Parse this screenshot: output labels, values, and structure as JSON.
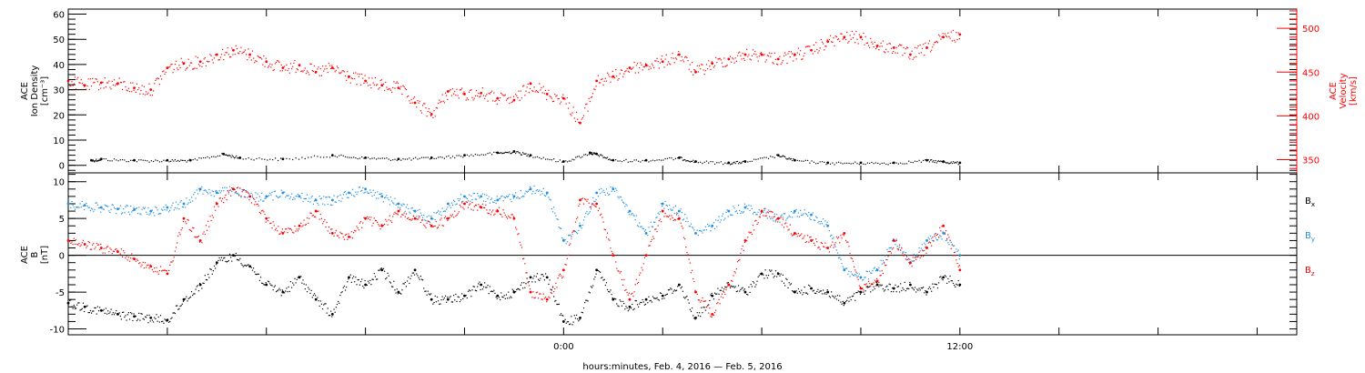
{
  "colors": {
    "black": "#000000",
    "red": "#ff0000",
    "blue": "#1f8fe6"
  },
  "chart_data": [
    {
      "type": "scatter",
      "panel": "top",
      "ylabel_left": [
        "ACE",
        "Ion Density",
        "[cm⁻³]"
      ],
      "ylabel_right": [
        "ACE",
        "Velocity",
        "[km/s]"
      ],
      "left_axis": {
        "ylim": [
          -3,
          62
        ],
        "ticks": [
          0,
          10,
          20,
          30,
          40,
          50,
          60
        ],
        "tick_labels": [
          "0",
          "10",
          "20",
          "30",
          "40",
          "50",
          "60"
        ]
      },
      "right_axis": {
        "ylim": [
          335,
          522
        ],
        "ticks": [
          350,
          400,
          450,
          500
        ],
        "tick_labels": [
          "350",
          "400",
          "450",
          "500"
        ]
      },
      "x_hours_range": [
        -15,
        22.2
      ],
      "series": [
        {
          "color": "black",
          "axis": "left",
          "x_hours": [
            -14.3,
            -14,
            -13,
            -12,
            -11.3,
            -10.3,
            -9.8,
            -8.5,
            -7,
            -6,
            -5,
            -4,
            -3,
            -2,
            -1.5,
            -1,
            0,
            0.8,
            1,
            1.5,
            2.5,
            3.5,
            4,
            5,
            5.5,
            6.5,
            7,
            8,
            9,
            10,
            11,
            11.5,
            12
          ],
          "y": [
            2,
            2.5,
            2,
            2,
            2,
            4.5,
            3,
            2.5,
            4,
            3,
            2.5,
            3,
            4,
            5,
            5.5,
            4,
            1.5,
            5,
            4.5,
            2,
            2,
            3,
            1.5,
            1,
            1.5,
            4,
            2,
            1,
            1,
            1,
            2,
            1.5,
            1
          ]
        },
        {
          "color": "red",
          "axis": "right",
          "x_hours": [
            -15,
            -14.5,
            -14,
            -13.5,
            -13,
            -12.5,
            -12,
            -11.5,
            -11,
            -10.5,
            -10,
            -9.5,
            -9,
            -8.5,
            -8,
            -7.5,
            -7,
            -6.5,
            -6,
            -5.5,
            -5,
            -4.5,
            -4,
            -3.5,
            -3,
            -2.5,
            -2,
            -1.5,
            -1,
            -0.5,
            0,
            0.5,
            1,
            1.5,
            2,
            2.5,
            3,
            3.5,
            4,
            4.5,
            5,
            5.5,
            6,
            6.5,
            7,
            7.5,
            8,
            8.5,
            9,
            9.5,
            10,
            10.5,
            11,
            11.5,
            12
          ],
          "y": [
            440,
            435,
            438,
            437,
            432,
            430,
            455,
            460,
            462,
            470,
            475,
            470,
            462,
            455,
            458,
            450,
            455,
            445,
            440,
            435,
            432,
            415,
            402,
            428,
            425,
            426,
            420,
            418,
            437,
            425,
            420,
            392,
            440,
            445,
            455,
            458,
            462,
            470,
            450,
            460,
            465,
            470,
            470,
            465,
            470,
            475,
            485,
            490,
            490,
            480,
            478,
            470,
            478,
            490,
            493
          ]
        }
      ]
    },
    {
      "type": "scatter",
      "panel": "bottom",
      "ylabel_left": [
        "ACE",
        "B",
        "[nT]"
      ],
      "left_axis": {
        "ylim": [
          -10.8,
          11.2
        ],
        "ticks": [
          -10,
          -5,
          0,
          5,
          10
        ],
        "tick_labels": [
          "-10",
          "-5",
          "0",
          "5",
          "10"
        ]
      },
      "zero_line": true,
      "x_hours_range": [
        -15,
        22.2
      ],
      "legend_position": "right",
      "series": [
        {
          "name": "B",
          "sub": "x",
          "color": "black",
          "x_hours": [
            -15,
            -14.5,
            -14,
            -13.5,
            -13,
            -12.5,
            -12,
            -11.5,
            -11,
            -10.5,
            -10,
            -9.5,
            -9,
            -8.5,
            -8,
            -7.5,
            -7,
            -6.5,
            -6,
            -5.5,
            -5,
            -4.5,
            -4,
            -3.5,
            -3,
            -2.5,
            -2,
            -1.5,
            -1,
            -0.5,
            0,
            0.5,
            1,
            1.5,
            2,
            2.5,
            3,
            3.5,
            4,
            4.5,
            5,
            5.5,
            6,
            6.5,
            7,
            7.5,
            8,
            8.5,
            9,
            9.5,
            10,
            10.5,
            11,
            11.5,
            12
          ],
          "y": [
            -6.5,
            -7,
            -7.5,
            -8,
            -8.3,
            -8.5,
            -8.8,
            -6,
            -4,
            -1,
            0,
            -1.5,
            -4,
            -5,
            -3,
            -6,
            -8,
            -3,
            -4,
            -2,
            -5,
            -2,
            -6,
            -6,
            -5.5,
            -4,
            -5.5,
            -5,
            -3,
            -3,
            -9,
            -8.5,
            -2,
            -6,
            -7,
            -6,
            -5.5,
            -4,
            -8.5,
            -5.5,
            -4,
            -5,
            -2.5,
            -2.5,
            -5,
            -4.5,
            -5,
            -6.5,
            -5,
            -4,
            -4.5,
            -4,
            -5,
            -3,
            -4
          ]
        },
        {
          "name": "B",
          "sub": "y",
          "color": "blue",
          "x_hours": [
            -15,
            -14.5,
            -14,
            -13.5,
            -13,
            -12.5,
            -12,
            -11.5,
            -11,
            -10.5,
            -10,
            -9.5,
            -9,
            -8.5,
            -8,
            -7.5,
            -7,
            -6.5,
            -6,
            -5.5,
            -5,
            -4.5,
            -4,
            -3.5,
            -3,
            -2.5,
            -2,
            -1.5,
            -1,
            -0.5,
            0,
            0.5,
            1,
            1.5,
            2,
            2.5,
            3,
            3.5,
            4,
            4.5,
            5,
            5.5,
            6,
            6.5,
            7,
            7.5,
            8,
            8.5,
            9,
            9.5,
            10,
            10.5,
            11,
            11.5,
            12
          ],
          "y": [
            7,
            6.8,
            6.5,
            6.3,
            6.2,
            6,
            6.5,
            7,
            9,
            8.5,
            9,
            8,
            8,
            8.5,
            8,
            7.5,
            7.5,
            8.5,
            9,
            8,
            7,
            6,
            5,
            7,
            8,
            8,
            7.5,
            8,
            9,
            8.5,
            2,
            4,
            8.5,
            9,
            6,
            3,
            7,
            6,
            3,
            4,
            6,
            6.5,
            6,
            5,
            6,
            5.5,
            4,
            -2,
            -3,
            -2,
            2,
            -1,
            2,
            3,
            0
          ]
        },
        {
          "name": "B",
          "sub": "z",
          "color": "red",
          "x_hours": [
            -15,
            -14.5,
            -14,
            -13.5,
            -13,
            -12.5,
            -12,
            -11.5,
            -11,
            -10.5,
            -10,
            -9.5,
            -9,
            -8.5,
            -8,
            -7.5,
            -7,
            -6.5,
            -6,
            -5.5,
            -5,
            -4.5,
            -4,
            -3.5,
            -3,
            -2.5,
            -2,
            -1.5,
            -1,
            -0.5,
            0,
            0.5,
            1,
            1.5,
            2,
            2.5,
            3,
            3.5,
            4,
            4.5,
            5,
            5.5,
            6,
            6.5,
            7,
            7.5,
            8,
            8.5,
            9,
            9.5,
            10,
            10.5,
            11,
            11.5,
            12
          ],
          "y": [
            2,
            1.5,
            1,
            0.5,
            -0.5,
            -1.5,
            -2.5,
            5,
            2,
            7,
            9,
            8,
            5,
            3,
            4,
            6,
            3,
            2.5,
            5,
            4,
            6,
            5,
            4,
            5,
            7,
            6.5,
            6,
            5,
            -5,
            -6,
            -2,
            7.5,
            7,
            0,
            -6,
            0,
            6,
            5,
            -5,
            -8,
            -4,
            2,
            6,
            5,
            3,
            2,
            1,
            3,
            -4.5,
            -3.5,
            2,
            -1,
            1,
            4,
            -2
          ]
        }
      ]
    }
  ],
  "xaxis": {
    "tick_hours": [
      -15,
      -12,
      -9,
      -6,
      -3,
      0,
      3,
      6,
      9,
      12,
      15,
      18,
      21
    ],
    "tick_labels": [
      {
        "hour": 0,
        "text": "0:00"
      },
      {
        "hour": 12,
        "text": "12:00"
      }
    ],
    "label": "hours:minutes, Feb.  4, 2016 — Feb.  5, 2016"
  }
}
